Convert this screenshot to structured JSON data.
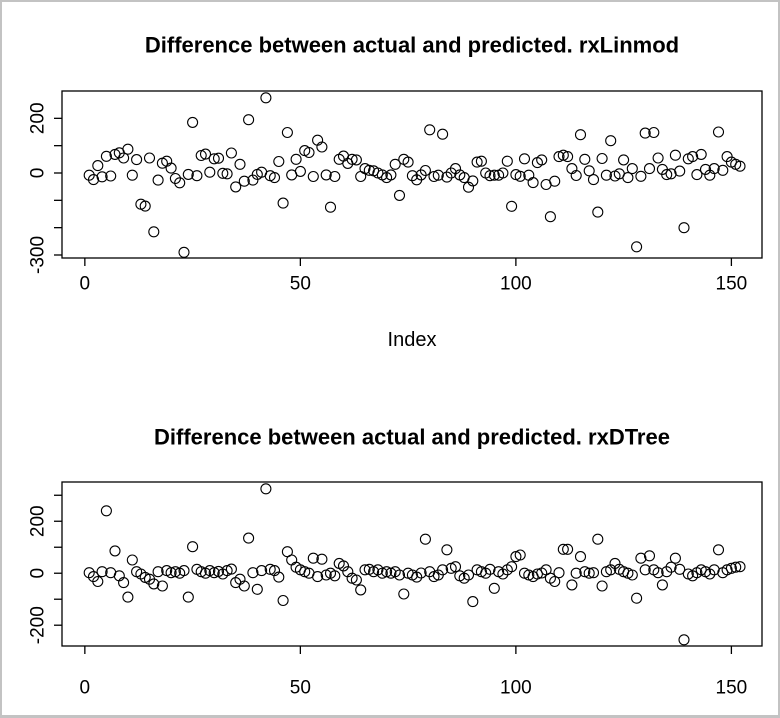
{
  "page": {
    "background": "#ffffff",
    "border_color": "#c3c3c3",
    "foreground": "#000000"
  },
  "chart_data": [
    {
      "type": "scatter",
      "title": "Difference between actual and predicted. rxLinmod",
      "xlabel": "Index",
      "ylabel": "",
      "marker": "open-circle",
      "grid": false,
      "legend": "none",
      "x_start": 1,
      "xlim": [
        -5.3,
        157.1
      ],
      "ylim": [
        -311,
        300
      ],
      "x_ticks": [
        0,
        50,
        100,
        150
      ],
      "y_ticks": [
        200,
        100,
        0,
        -100,
        -200,
        -300
      ],
      "y_tick_labels_shown": [
        "200",
        "0",
        "-300"
      ],
      "values": [
        -8,
        -24,
        27,
        -14,
        61,
        -11,
        68,
        74,
        55,
        87,
        -8,
        49,
        -114,
        -121,
        55,
        -215,
        -26,
        36,
        43,
        18,
        -20,
        -36,
        -290,
        -5,
        185,
        -10,
        64,
        69,
        3,
        52,
        54,
        -1,
        -3,
        73,
        -51,
        32,
        -30,
        195,
        -26,
        -5,
        3,
        275,
        -10,
        -17,
        42,
        -110,
        148,
        -7,
        50,
        6,
        82,
        75,
        -13,
        120,
        95,
        -7,
        -125,
        -13,
        50,
        62,
        35,
        50,
        48,
        -13,
        16,
        10,
        8,
        0,
        -7,
        -17,
        -7,
        32,
        -82,
        50,
        40,
        -10,
        -25,
        -7,
        9,
        158,
        -13,
        -8,
        142,
        -15,
        0,
        16,
        -7,
        -17,
        -52,
        -29,
        40,
        43,
        0,
        -10,
        -8,
        -8,
        0,
        43,
        -122,
        -6,
        -12,
        52,
        -8,
        -35,
        38,
        48,
        -42,
        -160,
        -30,
        60,
        65,
        60,
        16,
        -9,
        140,
        50,
        8,
        -24,
        -143,
        53,
        -8,
        118,
        -11,
        -3,
        48,
        -17,
        16,
        -270,
        -12,
        146,
        16,
        148,
        55,
        13,
        -6,
        -3,
        65,
        7,
        -200,
        52,
        60,
        -6,
        68,
        13,
        -8,
        16,
        150,
        10,
        60,
        40,
        32,
        25
      ]
    },
    {
      "type": "scatter",
      "title": "Difference between actual and predicted. rxDTree",
      "xlabel": "",
      "ylabel": "",
      "marker": "open-circle",
      "grid": false,
      "legend": "none",
      "x_start": 1,
      "xlim": [
        -5.3,
        157.1
      ],
      "ylim": [
        -280,
        351
      ],
      "x_ticks": [
        0,
        50,
        100,
        150
      ],
      "y_ticks": [
        300,
        200,
        100,
        0,
        -100,
        -200
      ],
      "y_tick_labels_shown": [
        "200",
        "0",
        "-200"
      ],
      "values": [
        2,
        -13,
        -32,
        6,
        240,
        2,
        86,
        -10,
        -36,
        -92,
        51,
        6,
        -3,
        -16,
        -23,
        -41,
        6,
        -49,
        10,
        2,
        6,
        0,
        10,
        -92,
        102,
        15,
        6,
        0,
        10,
        2,
        7,
        -3,
        10,
        16,
        -36,
        -23,
        -49,
        135,
        2,
        -62,
        10,
        325,
        15,
        10,
        -15,
        -105,
        83,
        51,
        23,
        13,
        6,
        0,
        58,
        -13,
        54,
        -7,
        0,
        -10,
        38,
        28,
        6,
        -19,
        -26,
        -64,
        13,
        15,
        6,
        13,
        0,
        6,
        0,
        6,
        -7,
        -80,
        0,
        -7,
        -15,
        1,
        131,
        6,
        -13,
        -7,
        13,
        90,
        19,
        25,
        -10,
        -19,
        -7,
        -109,
        13,
        6,
        0,
        15,
        -58,
        6,
        -3,
        13,
        25,
        64,
        70,
        0,
        -7,
        -13,
        -3,
        1,
        13,
        -19,
        -32,
        2,
        92,
        92,
        -45,
        0,
        64,
        6,
        0,
        2,
        131,
        -49,
        6,
        13,
        38,
        15,
        6,
        0,
        -7,
        -96,
        58,
        13,
        67,
        13,
        2,
        -45,
        6,
        23,
        58,
        15,
        -256,
        -3,
        -10,
        2,
        13,
        6,
        -3,
        13,
        90,
        2,
        13,
        19,
        23,
        25
      ]
    }
  ]
}
